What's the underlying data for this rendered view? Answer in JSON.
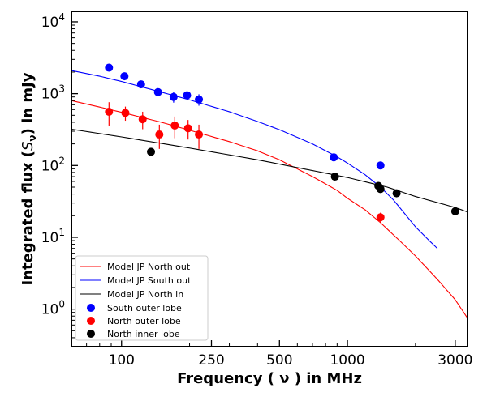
{
  "chart_data": {
    "type": "scatter",
    "xlabel": "Frequency ( ν ) in MHz",
    "ylabel_prefix": "Integrated flux (",
    "ylabel_sym": "S",
    "ylabel_sub": "ν",
    "ylabel_suffix": ") in mJy",
    "x_scale": "log",
    "y_scale": "log",
    "xlim": [
      60,
      3400
    ],
    "ylim": [
      0.3,
      14000
    ],
    "x_ticks": [
      {
        "value": 100,
        "label": "100"
      },
      {
        "value": 250,
        "label": "250"
      },
      {
        "value": 500,
        "label": "500"
      },
      {
        "value": 1000,
        "label": "1000"
      },
      {
        "value": 3000,
        "label": "3000"
      }
    ],
    "y_ticks": [
      {
        "value": 1,
        "base": "10",
        "exp": "0"
      },
      {
        "value": 10,
        "base": "10",
        "exp": "1"
      },
      {
        "value": 100,
        "base": "10",
        "exp": "2"
      },
      {
        "value": 1000,
        "base": "10",
        "exp": "3"
      },
      {
        "value": 10000,
        "base": "10",
        "exp": "4"
      }
    ],
    "grid": false,
    "legend_position": "bottom-left",
    "model_curves": [
      {
        "name": "Model JP North out",
        "color": "#ff0000",
        "points": [
          [
            60,
            800
          ],
          [
            80,
            650
          ],
          [
            100,
            550
          ],
          [
            150,
            400
          ],
          [
            200,
            310
          ],
          [
            300,
            215
          ],
          [
            400,
            160
          ],
          [
            500,
            120
          ],
          [
            700,
            70
          ],
          [
            900,
            45
          ],
          [
            1000,
            35
          ],
          [
            1200,
            24
          ],
          [
            1400,
            16
          ],
          [
            1700,
            9
          ],
          [
            2000,
            5.5
          ],
          [
            2500,
            2.6
          ],
          [
            3000,
            1.35
          ],
          [
            3400,
            0.75
          ]
        ]
      },
      {
        "name": "Model JP South out",
        "color": "#0000ff",
        "points": [
          [
            60,
            2100
          ],
          [
            80,
            1750
          ],
          [
            100,
            1480
          ],
          [
            150,
            1050
          ],
          [
            200,
            820
          ],
          [
            300,
            560
          ],
          [
            400,
            410
          ],
          [
            500,
            315
          ],
          [
            700,
            200
          ],
          [
            900,
            132
          ],
          [
            1000,
            108
          ],
          [
            1200,
            74
          ],
          [
            1400,
            50
          ],
          [
            1600,
            33
          ],
          [
            1800,
            21
          ],
          [
            2000,
            14
          ],
          [
            2300,
            9
          ],
          [
            2500,
            7
          ]
        ]
      },
      {
        "name": "Model JP North in",
        "color": "#000000",
        "points": [
          [
            60,
            320
          ],
          [
            100,
            250
          ],
          [
            200,
            175
          ],
          [
            400,
            120
          ],
          [
            700,
            85
          ],
          [
            1000,
            68
          ],
          [
            1500,
            50
          ],
          [
            2000,
            37
          ],
          [
            3000,
            26
          ],
          [
            3400,
            22.5
          ]
        ]
      }
    ],
    "series": [
      {
        "name": "South outer lobe",
        "color": "#0000ff",
        "points": [
          {
            "x": 88,
            "y": 2300,
            "err": 0
          },
          {
            "x": 103,
            "y": 1750,
            "err": 0
          },
          {
            "x": 122,
            "y": 1350,
            "err": 0
          },
          {
            "x": 145,
            "y": 1050,
            "err": 0
          },
          {
            "x": 170,
            "y": 900,
            "err": 150
          },
          {
            "x": 195,
            "y": 950,
            "err": 0
          },
          {
            "x": 220,
            "y": 830,
            "err": 150
          },
          {
            "x": 870,
            "y": 130,
            "err": 0
          },
          {
            "x": 1400,
            "y": 100,
            "err": 0
          }
        ]
      },
      {
        "name": "North outer lobe",
        "color": "#ff0000",
        "points": [
          {
            "x": 88,
            "y": 560,
            "err": 200
          },
          {
            "x": 104,
            "y": 540,
            "err": 120
          },
          {
            "x": 124,
            "y": 440,
            "err": 120
          },
          {
            "x": 147,
            "y": 270,
            "err": 100
          },
          {
            "x": 172,
            "y": 360,
            "err": 120
          },
          {
            "x": 197,
            "y": 330,
            "err": 100
          },
          {
            "x": 220,
            "y": 270,
            "err": 100
          },
          {
            "x": 1400,
            "y": 19,
            "err": 3
          }
        ]
      },
      {
        "name": "North inner lobe",
        "color": "#000000",
        "points": [
          {
            "x": 135,
            "y": 155,
            "err": 0
          },
          {
            "x": 880,
            "y": 70,
            "err": 0
          },
          {
            "x": 1370,
            "y": 52,
            "err": 0
          },
          {
            "x": 1400,
            "y": 47,
            "err": 0
          },
          {
            "x": 1650,
            "y": 41,
            "err": 0
          },
          {
            "x": 3000,
            "y": 23,
            "err": 0
          }
        ]
      }
    ]
  }
}
